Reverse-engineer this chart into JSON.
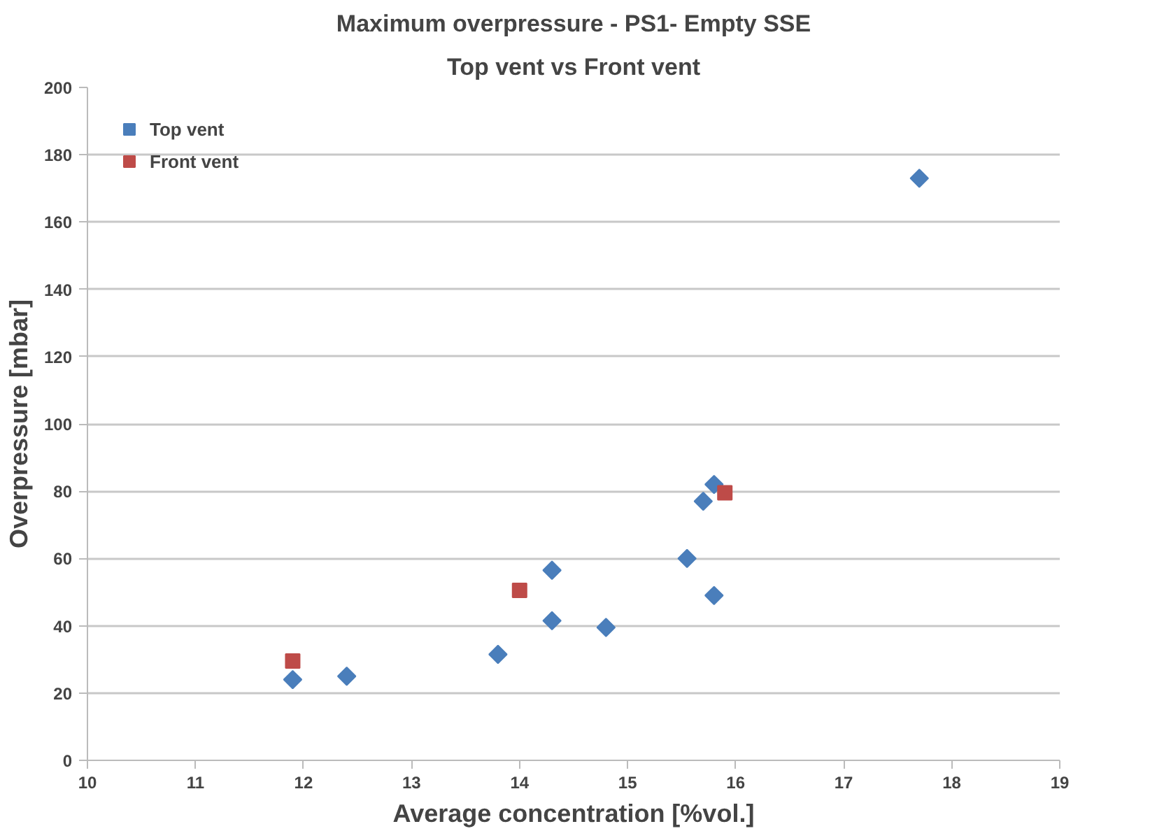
{
  "chart_data": {
    "type": "scatter",
    "title": "Maximum overpressure - PS1- Empty SSE",
    "subtitle": "Top vent vs Front vent",
    "xlabel": "Average concentration [%vol.]",
    "ylabel": "Overpressure [mbar]",
    "xlim": [
      10,
      19
    ],
    "xticks": [
      10,
      11,
      12,
      13,
      14,
      15,
      16,
      17,
      18,
      19
    ],
    "ylim": [
      0,
      200
    ],
    "yticks": [
      0,
      20,
      40,
      60,
      80,
      100,
      120,
      140,
      160,
      180,
      200
    ],
    "grid": "y",
    "legend": "top left",
    "series": [
      {
        "name": "Top vent",
        "color": "#4a7ebb",
        "marker": "diamond",
        "x": [
          11.9,
          12.4,
          13.8,
          14.3,
          14.3,
          14.8,
          15.55,
          15.7,
          15.8,
          15.8,
          17.7
        ],
        "values": [
          24,
          25,
          31.5,
          41.5,
          56.5,
          39.5,
          60,
          77,
          82,
          49,
          173
        ]
      },
      {
        "name": "Front vent",
        "color": "#be4b48",
        "marker": "square",
        "x": [
          11.9,
          14.0,
          15.9
        ],
        "values": [
          29.5,
          50.5,
          79.5
        ]
      }
    ]
  }
}
